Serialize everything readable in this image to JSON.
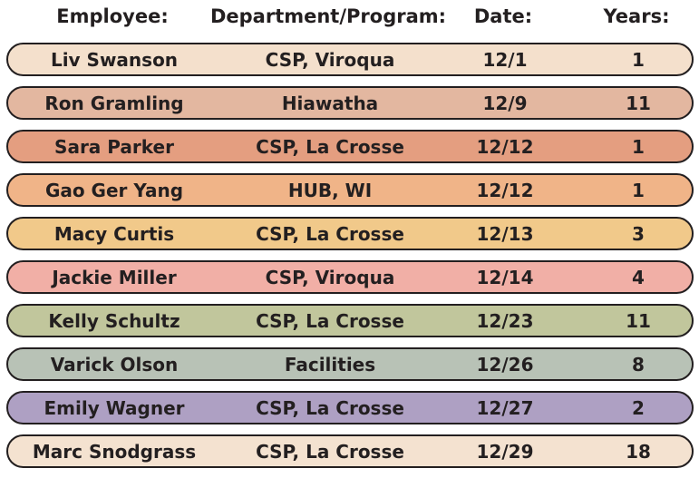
{
  "header": {
    "employee": "Employee:",
    "department": "Department/Program:",
    "date": "Date:",
    "years": "Years:"
  },
  "rows": [
    {
      "employee": "Liv Swanson",
      "department": "CSP, Viroqua",
      "date": "12/1",
      "years": "1",
      "color": "#f4e0cc"
    },
    {
      "employee": "Ron Gramling",
      "department": "Hiawatha",
      "date": "12/9",
      "years": "11",
      "color": "#e3b7a0"
    },
    {
      "employee": "Sara Parker",
      "department": "CSP, La Crosse",
      "date": "12/12",
      "years": "1",
      "color": "#e49e80"
    },
    {
      "employee": "Gao Ger Yang",
      "department": "HUB, WI",
      "date": "12/12",
      "years": "1",
      "color": "#f0b488"
    },
    {
      "employee": "Macy Curtis",
      "department": "CSP, La Crosse",
      "date": "12/13",
      "years": "3",
      "color": "#f1c98a"
    },
    {
      "employee": "Jackie Miller",
      "department": "CSP, Viroqua",
      "date": "12/14",
      "years": "4",
      "color": "#f1afa6"
    },
    {
      "employee": "Kelly Schultz",
      "department": "CSP, La Crosse",
      "date": "12/23",
      "years": "11",
      "color": "#c1c69c"
    },
    {
      "employee": "Varick Olson",
      "department": "Facilities",
      "date": "12/26",
      "years": "8",
      "color": "#b8c2b6"
    },
    {
      "employee": "Emily Wagner",
      "department": "CSP, La Crosse",
      "date": "12/27",
      "years": "2",
      "color": "#aea0c3"
    },
    {
      "employee": "Marc Snodgrass",
      "department": "CSP, La Crosse",
      "date": "12/29",
      "years": "18",
      "color": "#f4e2d0"
    }
  ]
}
